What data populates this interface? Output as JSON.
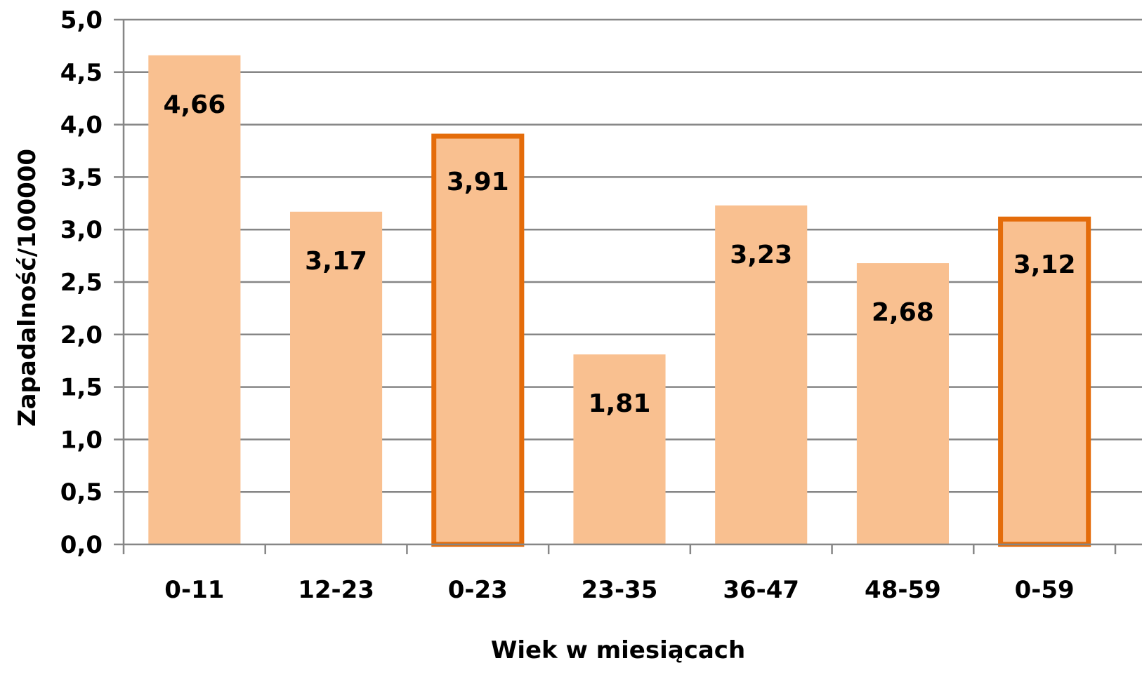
{
  "chart_data": {
    "type": "bar",
    "title": "",
    "xlabel": "Wiek w miesiącach",
    "ylabel": "Zapadalność/100000",
    "categories": [
      "0-11",
      "12-23",
      "0-23",
      "23-35",
      "36-47",
      "48-59",
      "0-59"
    ],
    "values": [
      4.66,
      3.17,
      3.91,
      1.81,
      3.23,
      2.68,
      3.12
    ],
    "value_labels": [
      "4,66",
      "3,17",
      "3,91",
      "1,81",
      "3,23",
      "2,68",
      "3,12"
    ],
    "highlighted": [
      false,
      false,
      true,
      false,
      false,
      false,
      true
    ],
    "ylim": [
      0,
      5
    ],
    "yticks": [
      0,
      0.5,
      1,
      1.5,
      2,
      2.5,
      3,
      3.5,
      4,
      4.5,
      5
    ],
    "ytick_labels": [
      "0,0",
      "0,5",
      "1,0",
      "1,5",
      "2,0",
      "2,5",
      "3,0",
      "3,5",
      "4,0",
      "4,5",
      "5,0"
    ],
    "grid": true,
    "colors": {
      "bar_fill": "#F9C090",
      "highlight_border": "#E46C0A",
      "grid": "#868686",
      "axis": "#868686"
    }
  }
}
